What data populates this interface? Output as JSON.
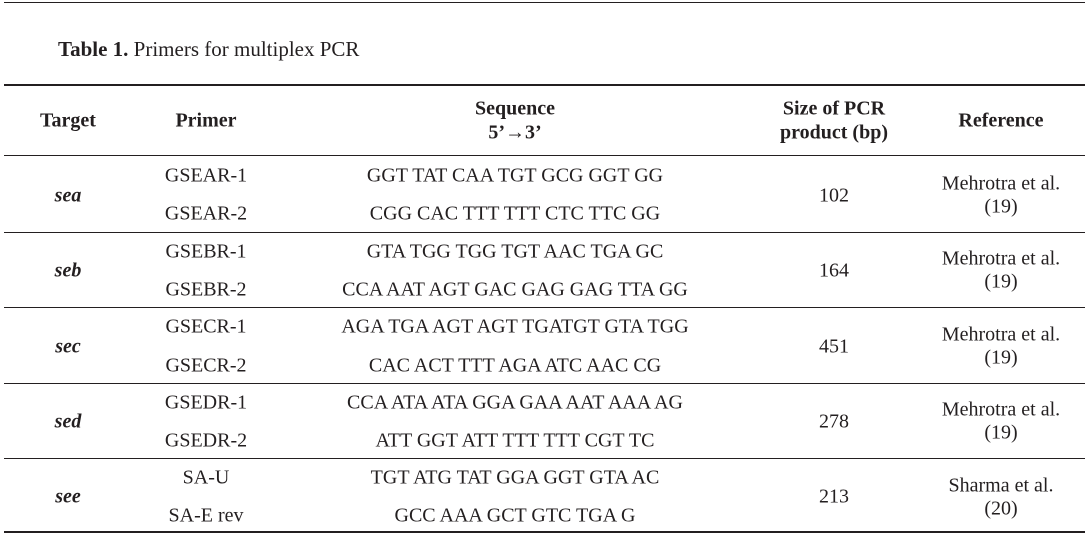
{
  "table": {
    "caption_label": "Table 1.",
    "caption_text": " Primers for multiplex PCR",
    "headers": {
      "target": "Target",
      "primer": "Primer",
      "sequence_line1": "Sequence",
      "sequence_line2": "5’→3’",
      "size_line1": "Size of PCR",
      "size_line2": "product (bp)",
      "reference": "Reference"
    },
    "groups": [
      {
        "target": "sea",
        "primers": [
          {
            "name": "GSEAR-1",
            "sequence": "GGT TAT CAA TGT GCG GGT GG"
          },
          {
            "name": "GSEAR-2",
            "sequence": "CGG CAC TTT TTT CTC TTC GG"
          }
        ],
        "size": "102",
        "ref_line1": "Mehrotra et al.",
        "ref_line2": "(19)"
      },
      {
        "target": "seb",
        "primers": [
          {
            "name": "GSEBR-1",
            "sequence": "GTA TGG TGG TGT AAC TGA GC"
          },
          {
            "name": "GSEBR-2",
            "sequence": "CCA AAT AGT GAC GAG GAG TTA GG"
          }
        ],
        "size": "164",
        "ref_line1": "Mehrotra et al.",
        "ref_line2": "(19)"
      },
      {
        "target": "sec",
        "primers": [
          {
            "name": "GSECR-1",
            "sequence": "AGA TGA AGT AGT TGATGT GTA TGG"
          },
          {
            "name": "GSECR-2",
            "sequence": "CAC ACT TTT AGA ATC AAC CG"
          }
        ],
        "size": "451",
        "ref_line1": "Mehrotra et al.",
        "ref_line2": "(19)"
      },
      {
        "target": "sed",
        "primers": [
          {
            "name": "GSEDR-1",
            "sequence": "CCA ATA ATA GGA GAA AAT AAA AG"
          },
          {
            "name": "GSEDR-2",
            "sequence": "ATT GGT ATT TTT TTT CGT TC"
          }
        ],
        "size": "278",
        "ref_line1": "Mehrotra et al.",
        "ref_line2": "(19)"
      },
      {
        "target": "see",
        "primers": [
          {
            "name": "SA-U",
            "sequence": "TGT ATG TAT GGA GGT GTA AC"
          },
          {
            "name": "SA-E rev",
            "sequence": "GCC AAA GCT GTC TGA G"
          }
        ],
        "size": "213",
        "ref_line1": "Sharma et al.",
        "ref_line2": "(20)"
      }
    ]
  }
}
